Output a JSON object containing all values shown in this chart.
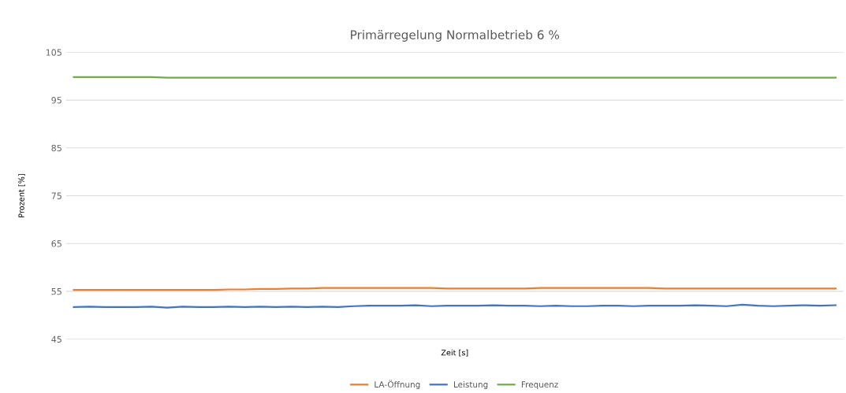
{
  "chart_data": {
    "type": "line",
    "title": "Primärregelung Normalbetrieb 6 %",
    "xlabel": "Zeit [s]",
    "ylabel": "Prozent [%]",
    "categories": [
      null,
      null,
      null,
      null,
      null,
      null,
      null,
      null,
      null,
      null,
      null,
      null,
      null,
      null,
      null,
      null,
      null,
      null,
      null,
      null,
      null,
      null,
      null,
      null,
      null,
      null,
      null,
      null,
      null,
      null,
      null,
      null,
      null,
      null,
      null,
      null,
      null,
      null,
      null,
      null,
      null,
      null,
      null,
      null,
      null,
      null,
      null,
      null,
      null,
      null
    ],
    "series": [
      {
        "name": "LA-Öffnung",
        "color": "#ed7d31",
        "values": [
          55.3,
          55.3,
          55.3,
          55.3,
          55.3,
          55.3,
          55.3,
          55.3,
          55.3,
          55.3,
          55.4,
          55.4,
          55.5,
          55.5,
          55.6,
          55.6,
          55.7,
          55.7,
          55.7,
          55.7,
          55.7,
          55.7,
          55.7,
          55.7,
          55.6,
          55.6,
          55.6,
          55.6,
          55.6,
          55.6,
          55.7,
          55.7,
          55.7,
          55.7,
          55.7,
          55.7,
          55.7,
          55.7,
          55.6,
          55.6,
          55.6,
          55.6,
          55.6,
          55.6,
          55.6,
          55.6,
          55.6,
          55.6,
          55.6,
          55.6
        ]
      },
      {
        "name": "Leistung",
        "color": "#4472c4",
        "values": [
          51.7,
          51.8,
          51.7,
          51.7,
          51.7,
          51.8,
          51.6,
          51.8,
          51.7,
          51.7,
          51.8,
          51.7,
          51.8,
          51.7,
          51.8,
          51.7,
          51.8,
          51.7,
          51.9,
          52.0,
          52.0,
          52.0,
          52.1,
          51.9,
          52.0,
          52.0,
          52.0,
          52.1,
          52.0,
          52.0,
          51.9,
          52.0,
          51.9,
          51.9,
          52.0,
          52.0,
          51.9,
          52.0,
          52.0,
          52.0,
          52.1,
          52.0,
          51.9,
          52.2,
          52.0,
          51.9,
          52.0,
          52.1,
          52.0,
          52.1
        ]
      },
      {
        "name": "Frequenz",
        "color": "#70ad47",
        "values": [
          99.8,
          99.8,
          99.8,
          99.8,
          99.8,
          99.8,
          99.7,
          99.7,
          99.7,
          99.7,
          99.7,
          99.7,
          99.7,
          99.7,
          99.7,
          99.7,
          99.7,
          99.7,
          99.7,
          99.7,
          99.7,
          99.7,
          99.7,
          99.7,
          99.7,
          99.7,
          99.7,
          99.7,
          99.7,
          99.7,
          99.7,
          99.7,
          99.7,
          99.7,
          99.7,
          99.7,
          99.7,
          99.7,
          99.7,
          99.7,
          99.7,
          99.7,
          99.7,
          99.7,
          99.7,
          99.7,
          99.7,
          99.7,
          99.7,
          99.7
        ]
      }
    ],
    "ylim": [
      45,
      105
    ],
    "yticks": [
      45,
      55,
      65,
      75,
      85,
      95,
      105
    ],
    "grid": "y",
    "legend": "bottom",
    "marker": "none",
    "line_style": "solid"
  }
}
